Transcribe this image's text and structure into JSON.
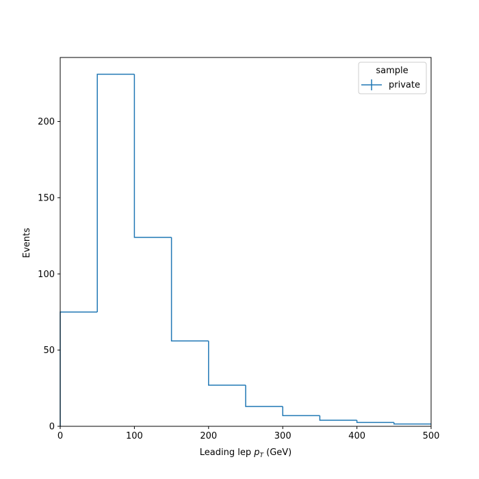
{
  "chart_data": {
    "type": "histogram",
    "xlabel_main": "Leading lep ",
    "xlabel_var": "p",
    "xlabel_sub": "T",
    "xlabel_unit": " (GeV)",
    "ylabel": "Events",
    "xlim": [
      0,
      500
    ],
    "ylim": [
      0,
      242
    ],
    "grid": false,
    "bin_edges": [
      0,
      50,
      100,
      150,
      200,
      250,
      300,
      350,
      400,
      450,
      500
    ],
    "series": [
      {
        "name": "private",
        "color": "#1f77b4",
        "values": [
          75,
          231,
          124,
          56,
          27,
          13,
          7,
          4,
          2.5,
          1.5
        ]
      }
    ],
    "x_ticks": [
      0,
      100,
      200,
      300,
      400,
      500
    ],
    "y_ticks": [
      0,
      50,
      100,
      150,
      200
    ],
    "legend": {
      "title": "sample",
      "placement": "top-right",
      "entries": [
        "private"
      ]
    }
  }
}
